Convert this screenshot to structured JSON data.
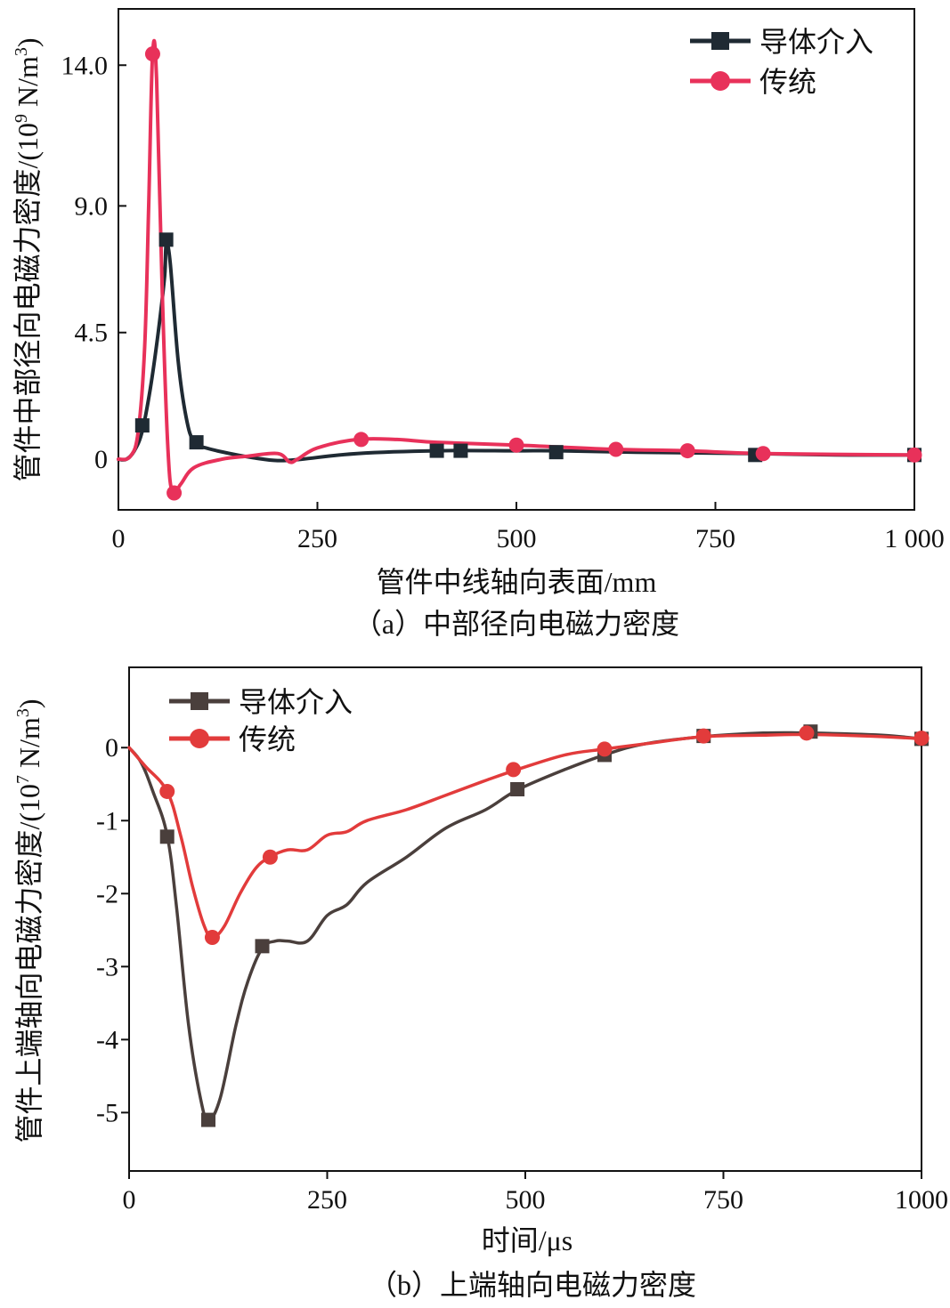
{
  "chart_data": [
    {
      "type": "line",
      "caption": "（a）中部径向电磁力密度",
      "xlabel": "管件中线轴向表面/mm",
      "ylabel_main": "管件中部径向电磁力密度/(10",
      "ylabel_exp": "9",
      "ylabel_unit": " N/m",
      "ylabel_unit_exp": "3",
      "ylabel_close": ")",
      "xlim": [
        0,
        1000
      ],
      "ylim": [
        -1.8,
        16.0
      ],
      "xticks": [
        0,
        250,
        500,
        750,
        1000
      ],
      "xtick_labels": [
        "0",
        "250",
        "500",
        "750",
        "1 000"
      ],
      "yticks": [
        0,
        4.5,
        9.0,
        14.0
      ],
      "ytick_labels": [
        "0",
        "4.5",
        "9.0",
        "14.0"
      ],
      "legend_position": "top-right",
      "series": [
        {
          "name": "导体介入",
          "color": "#1f2a33",
          "marker": "square",
          "curve": [
            [
              0,
              0
            ],
            [
              10,
              0
            ],
            [
              20,
              0.3
            ],
            [
              30,
              1.0
            ],
            [
              40,
              2.5
            ],
            [
              50,
              4.5
            ],
            [
              58,
              6.5
            ],
            [
              60,
              7.6
            ],
            [
              65,
              7.0
            ],
            [
              75,
              3.5
            ],
            [
              85,
              1.5
            ],
            [
              95,
              0.6
            ],
            [
              110,
              0.4
            ],
            [
              140,
              0.2
            ],
            [
              170,
              0.05
            ],
            [
              200,
              -0.05
            ],
            [
              230,
              0
            ],
            [
              300,
              0.2
            ],
            [
              400,
              0.3
            ],
            [
              500,
              0.3
            ],
            [
              550,
              0.3
            ],
            [
              650,
              0.25
            ],
            [
              800,
              0.2
            ],
            [
              900,
              0.15
            ],
            [
              1000,
              0.15
            ]
          ],
          "markers": [
            [
              30,
              1.2
            ],
            [
              60,
              7.8
            ],
            [
              98,
              0.6
            ],
            [
              400,
              0.3
            ],
            [
              430,
              0.3
            ],
            [
              550,
              0.25
            ],
            [
              800,
              0.15
            ],
            [
              1000,
              0.15
            ]
          ]
        },
        {
          "name": "传统",
          "color": "#e8315a",
          "marker": "circle",
          "curve": [
            [
              0,
              0
            ],
            [
              15,
              0.1
            ],
            [
              25,
              1.0
            ],
            [
              33,
              4.0
            ],
            [
              38,
              9.0
            ],
            [
              43,
              14.4
            ],
            [
              48,
              13.5
            ],
            [
              55,
              6.0
            ],
            [
              62,
              0.5
            ],
            [
              68,
              -1.2
            ],
            [
              78,
              -0.9
            ],
            [
              95,
              -0.3
            ],
            [
              130,
              0
            ],
            [
              160,
              0.1
            ],
            [
              200,
              0.2
            ],
            [
              215,
              -0.1
            ],
            [
              225,
              0.0
            ],
            [
              250,
              0.4
            ],
            [
              300,
              0.7
            ],
            [
              350,
              0.7
            ],
            [
              400,
              0.6
            ],
            [
              500,
              0.5
            ],
            [
              625,
              0.35
            ],
            [
              715,
              0.3
            ],
            [
              810,
              0.2
            ],
            [
              1000,
              0.15
            ]
          ],
          "markers": [
            [
              43,
              14.4
            ],
            [
              70,
              -1.2
            ],
            [
              305,
              0.7
            ],
            [
              500,
              0.5
            ],
            [
              625,
              0.35
            ],
            [
              715,
              0.3
            ],
            [
              810,
              0.2
            ],
            [
              1000,
              0.15
            ]
          ]
        }
      ]
    },
    {
      "type": "line",
      "caption": "（b）上端轴向电磁力密度",
      "xlabel": "时间/μs",
      "ylabel_main": "管件上端轴向电磁力密度/(10",
      "ylabel_exp": "7",
      "ylabel_unit": " N/m",
      "ylabel_unit_exp": "3",
      "ylabel_close": ")",
      "xlim": [
        0,
        1000
      ],
      "ylim": [
        -5.8,
        1.1
      ],
      "xticks": [
        0,
        250,
        500,
        750,
        1000
      ],
      "xtick_labels": [
        "0",
        "250",
        "500",
        "750",
        "1000"
      ],
      "yticks": [
        0,
        -1,
        -2,
        -3,
        -4,
        -5
      ],
      "ytick_labels": [
        "0",
        "-1",
        "-2",
        "-3",
        "-4",
        "-5"
      ],
      "legend_position": "top-left",
      "series": [
        {
          "name": "导体介入",
          "color": "#4a3f3c",
          "marker": "square",
          "curve": [
            [
              0,
              0
            ],
            [
              15,
              -0.2
            ],
            [
              30,
              -0.6
            ],
            [
              48,
              -1.2
            ],
            [
              60,
              -2.2
            ],
            [
              75,
              -3.8
            ],
            [
              90,
              -4.8
            ],
            [
              100,
              -5.1
            ],
            [
              115,
              -4.8
            ],
            [
              135,
              -3.8
            ],
            [
              150,
              -3.2
            ],
            [
              168,
              -2.75
            ],
            [
              185,
              -2.65
            ],
            [
              200,
              -2.65
            ],
            [
              225,
              -2.65
            ],
            [
              250,
              -2.3
            ],
            [
              275,
              -2.15
            ],
            [
              300,
              -1.85
            ],
            [
              350,
              -1.5
            ],
            [
              400,
              -1.1
            ],
            [
              450,
              -0.85
            ],
            [
              490,
              -0.58
            ],
            [
              550,
              -0.3
            ],
            [
              600,
              -0.1
            ],
            [
              650,
              0.05
            ],
            [
              725,
              0.15
            ],
            [
              800,
              0.2
            ],
            [
              860,
              0.2
            ],
            [
              950,
              0.17
            ],
            [
              1000,
              0.12
            ]
          ],
          "markers": [
            [
              48,
              -1.22
            ],
            [
              100,
              -5.1
            ],
            [
              168,
              -2.72
            ],
            [
              490,
              -0.57
            ],
            [
              600,
              -0.1
            ],
            [
              725,
              0.16
            ],
            [
              860,
              0.22
            ],
            [
              1000,
              0.12
            ]
          ]
        },
        {
          "name": "传统",
          "color": "#e23b3b",
          "marker": "circle",
          "curve": [
            [
              0,
              0
            ],
            [
              20,
              -0.25
            ],
            [
              48,
              -0.6
            ],
            [
              65,
              -1.2
            ],
            [
              80,
              -1.9
            ],
            [
              95,
              -2.45
            ],
            [
              105,
              -2.6
            ],
            [
              120,
              -2.45
            ],
            [
              140,
              -2.0
            ],
            [
              160,
              -1.65
            ],
            [
              178,
              -1.5
            ],
            [
              200,
              -1.4
            ],
            [
              225,
              -1.4
            ],
            [
              250,
              -1.2
            ],
            [
              275,
              -1.15
            ],
            [
              300,
              -1.0
            ],
            [
              350,
              -0.85
            ],
            [
              400,
              -0.65
            ],
            [
              450,
              -0.45
            ],
            [
              490,
              -0.3
            ],
            [
              550,
              -0.1
            ],
            [
              600,
              -0.02
            ],
            [
              650,
              0.05
            ],
            [
              725,
              0.15
            ],
            [
              800,
              0.17
            ],
            [
              860,
              0.18
            ],
            [
              950,
              0.15
            ],
            [
              1000,
              0.12
            ]
          ],
          "markers": [
            [
              48,
              -0.6
            ],
            [
              105,
              -2.6
            ],
            [
              178,
              -1.5
            ],
            [
              485,
              -0.3
            ],
            [
              600,
              -0.02
            ],
            [
              725,
              0.16
            ],
            [
              855,
              0.2
            ],
            [
              1000,
              0.13
            ]
          ]
        }
      ]
    }
  ]
}
